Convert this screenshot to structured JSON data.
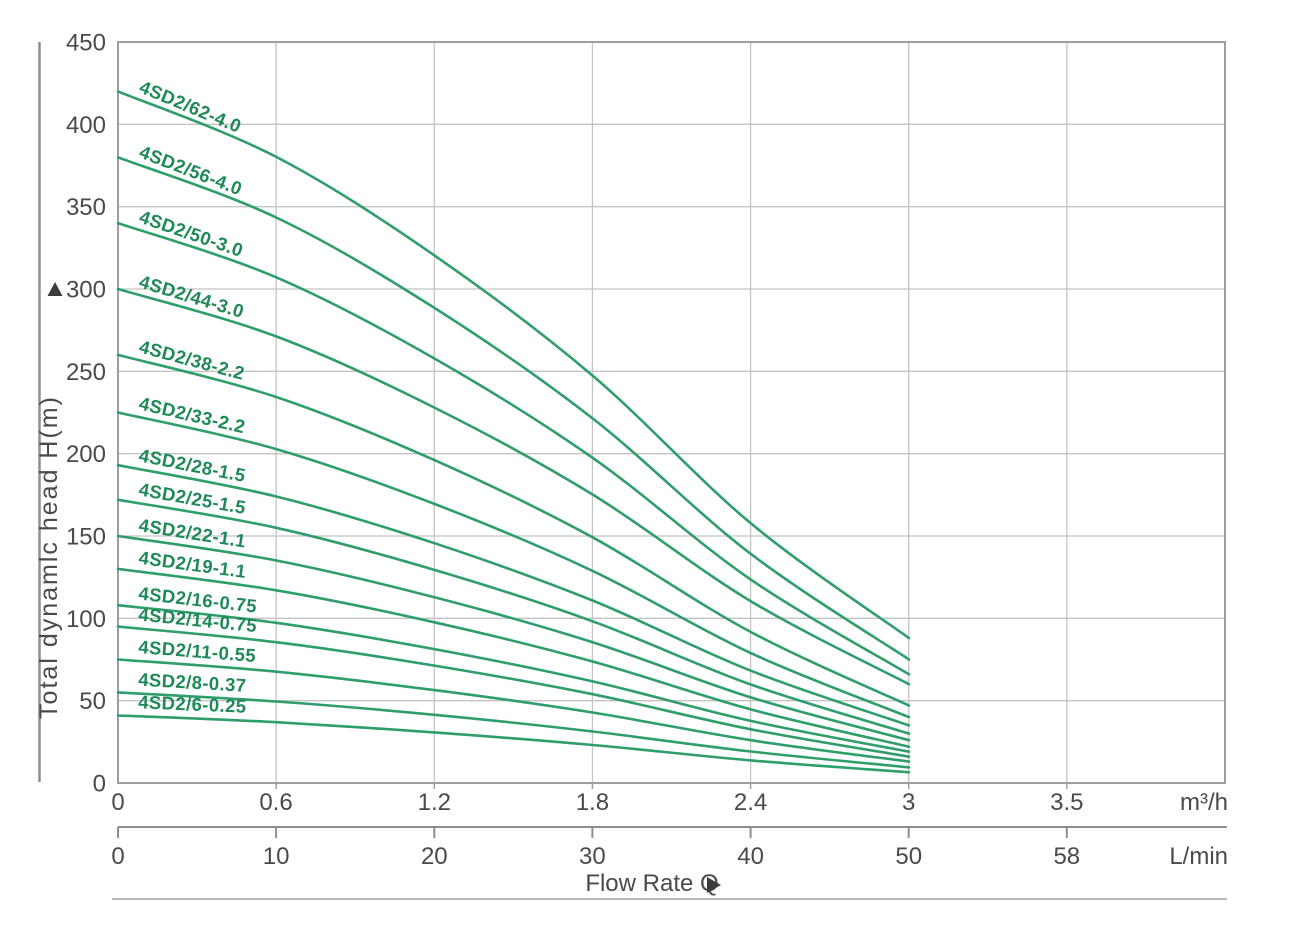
{
  "chart_data": {
    "type": "line",
    "title": "",
    "x_title": "Flow Rate Q",
    "y_axis": {
      "title": "Total dynamlc head H(m)",
      "min": 0,
      "max": 450,
      "step": 50,
      "tick_labels": [
        "450",
        "400",
        "350",
        "300",
        "250",
        "200",
        "150",
        "100",
        "50",
        "0"
      ]
    },
    "x_axis_primary": {
      "unit": "m³/h",
      "tick_labels": [
        "0",
        "0.6",
        "1.2",
        "1.8",
        "2.4",
        "3",
        "3.5"
      ]
    },
    "x_axis_secondary": {
      "unit": "L/min",
      "tick_labels": [
        "0",
        "10",
        "20",
        "30",
        "40",
        "50",
        "58"
      ]
    },
    "flow_q_m3h": [
      0,
      0.6,
      1.2,
      1.8,
      2.4,
      3.0
    ],
    "series": [
      {
        "name": "4SD2/62-4.0",
        "head_m": [
          420,
          380.2,
          320.4,
          247.4,
          157.7,
          88
        ]
      },
      {
        "name": "4SD2/56-4.0",
        "head_m": [
          380,
          343.4,
          288.5,
          221.4,
          139.1,
          75
        ]
      },
      {
        "name": "4SD2/50-3.0",
        "head_m": [
          340,
          307.1,
          257.8,
          197.5,
          123.5,
          66
        ]
      },
      {
        "name": "4SD2/44-3.0",
        "head_m": [
          300,
          271.2,
          228.0,
          175.2,
          110.4,
          60
        ]
      },
      {
        "name": "4SD2/38-2.2",
        "head_m": [
          260,
          234.4,
          196.1,
          149.2,
          91.7,
          47
        ]
      },
      {
        "name": "4SD2/33-2.2",
        "head_m": [
          225,
          202.8,
          169.5,
          128.8,
          78.9,
          40
        ]
      },
      {
        "name": "4SD2/28-1.5",
        "head_m": [
          193,
          174.0,
          145.6,
          110.8,
          68.2,
          35
        ]
      },
      {
        "name": "4SD2/25-1.5",
        "head_m": [
          172,
          155.0,
          129.4,
          98.2,
          59.8,
          30
        ]
      },
      {
        "name": "4SD2/22-1.1",
        "head_m": [
          150,
          135.1,
          112.8,
          85.5,
          52.0,
          26
        ]
      },
      {
        "name": "4SD2/19-1.1",
        "head_m": [
          130,
          117.0,
          97.6,
          73.8,
          44.7,
          22
        ]
      },
      {
        "name": "4SD2/16-0.75",
        "head_m": [
          108,
          97.3,
          81.3,
          61.7,
          37.7,
          19
        ]
      },
      {
        "name": "4SD2/14-0.75",
        "head_m": [
          95,
          85.5,
          71.3,
          53.9,
          32.6,
          16
        ]
      },
      {
        "name": "4SD2/11-0.55",
        "head_m": [
          75,
          67.6,
          56.4,
          42.8,
          26.0,
          13
        ]
      },
      {
        "name": "4SD2/8-0.37",
        "head_m": [
          55,
          49.5,
          41.4,
          31.3,
          19.1,
          9.5
        ]
      },
      {
        "name": "4SD2/6-0.25",
        "head_m": [
          41,
          36.9,
          30.7,
          23.1,
          13.7,
          6.5
        ]
      }
    ],
    "layout_hints": {
      "grid": "on",
      "legend": "labels-on-curves",
      "secondary_x_axis": "bracket-below"
    },
    "colors": {
      "curve": "#2f9e6b",
      "curve_label": "#1f8a58",
      "grid": "#c4c4c4",
      "border": "#9e9e9e",
      "axis_text": "#4a4a4a",
      "axis_line": "#8f8f8f",
      "arrow": "#3c3c3c"
    }
  }
}
